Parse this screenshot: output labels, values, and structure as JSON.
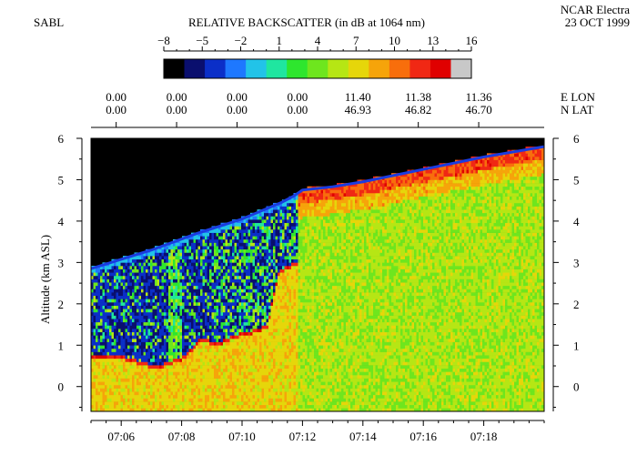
{
  "header": {
    "instrument": "SABL",
    "colorbar_title": "RELATIVE BACKSCATTER (in dB at 1064 nm)",
    "platform": "NCAR Electra",
    "date": "23 OCT 1999"
  },
  "colorbar": {
    "ticks": [
      -8,
      -5,
      -2,
      1,
      4,
      7,
      10,
      13,
      16
    ],
    "range": [
      -8,
      16
    ],
    "colors": [
      "#000000",
      "#0a0f6e",
      "#0b2fc8",
      "#1e78ff",
      "#22c3e8",
      "#1fe6a0",
      "#2ee62e",
      "#6ee61e",
      "#b6e614",
      "#e6d60a",
      "#f6a40a",
      "#f86e0c",
      "#f02814",
      "#e00000",
      "#c8c8c8"
    ]
  },
  "nav": {
    "lon_label": "E LON",
    "lat_label": "N LAT",
    "columns": [
      {
        "time": "07:05:50",
        "lon": "0.00",
        "lat": "0.00"
      },
      {
        "time": "07:07:50",
        "lon": "0.00",
        "lat": "0.00"
      },
      {
        "time": "07:09:50",
        "lon": "0.00",
        "lat": "0.00"
      },
      {
        "time": "07:11:50",
        "lon": "0.00",
        "lat": "0.00"
      },
      {
        "time": "07:13:50",
        "lon": "11.40",
        "lat": "46.93"
      },
      {
        "time": "07:15:50",
        "lon": "11.38",
        "lat": "46.82"
      },
      {
        "time": "07:17:50",
        "lon": "11.36",
        "lat": "46.70"
      }
    ]
  },
  "chart_data": {
    "type": "heatmap",
    "title": "RELATIVE BACKSCATTER (in dB at 1064 nm)",
    "xlabel": "",
    "ylabel": "Altitude (km ASL)",
    "x_ticks": [
      "07:06",
      "07:08",
      "07:10",
      "07:12",
      "07:14",
      "07:16",
      "07:18"
    ],
    "x_tick_minutes": [
      426,
      428,
      430,
      432,
      434,
      436,
      438
    ],
    "xlim_minutes": [
      425.0,
      440.0
    ],
    "ylim": [
      -0.6,
      6.0
    ],
    "y_ticks": [
      0,
      1,
      2,
      3,
      4,
      5,
      6
    ],
    "flight_altitude_km": {
      "minutes": [
        425.0,
        427.0,
        428.5,
        430.0,
        431.3,
        431.7,
        432.0,
        433.0,
        434.0,
        436.0,
        438.0,
        440.0
      ],
      "altitude": [
        2.9,
        3.35,
        3.75,
        4.1,
        4.5,
        4.65,
        4.8,
        4.88,
        5.0,
        5.3,
        5.6,
        5.85
      ]
    },
    "boundary_layer_top_km": {
      "minutes": [
        425.0,
        426.0,
        426.8,
        427.2,
        428.0,
        428.6,
        429.2,
        429.8,
        430.4,
        430.8,
        431.2,
        431.8
      ],
      "altitude": [
        0.65,
        0.62,
        0.45,
        0.4,
        0.6,
        1.05,
        0.95,
        1.15,
        1.25,
        1.4,
        2.7,
        2.9
      ]
    },
    "value_range_db": [
      -8,
      16
    ]
  }
}
